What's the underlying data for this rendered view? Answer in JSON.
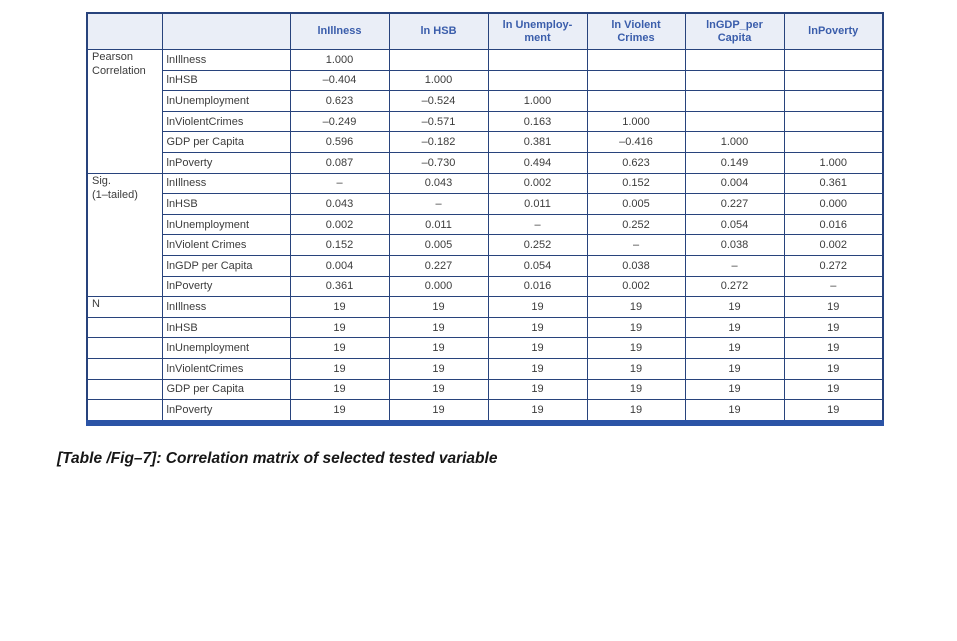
{
  "caption": "[Table /Fig–7]: Correlation matrix of selected tested variable",
  "colors": {
    "grid_border": "#28437c",
    "bottom_bar": "#2b54a6",
    "header_bg": "#eaeef7",
    "header_text": "#3a5dab",
    "body_text": "#3c3c3c"
  },
  "table": {
    "column_headers": [
      "",
      "",
      "lnIllness",
      "ln HSB",
      "ln Unemploy-\nment",
      "ln Violent\nCrimes",
      "lnGDP_per\nCapita",
      "lnPoverty"
    ],
    "sections": [
      {
        "stub": "Pearson\nCorrelation",
        "stub_merged": true,
        "rows": [
          {
            "label": "lnIllness",
            "cells": [
              "1.000",
              "",
              "",
              "",
              "",
              ""
            ]
          },
          {
            "label": "lnHSB",
            "cells": [
              "–0.404",
              "1.000",
              "",
              "",
              "",
              ""
            ]
          },
          {
            "label": "lnUnemployment",
            "cells": [
              "0.623",
              "–0.524",
              "1.000",
              "",
              "",
              ""
            ]
          },
          {
            "label": "lnViolentCrimes",
            "cells": [
              "–0.249",
              "–0.571",
              "0.163",
              "1.000",
              "",
              ""
            ]
          },
          {
            "label": "GDP per Capita",
            "cells": [
              "0.596",
              "–0.182",
              "0.381",
              "–0.416",
              "1.000",
              ""
            ]
          },
          {
            "label": "lnPoverty",
            "cells": [
              "0.087",
              "–0.730",
              "0.494",
              "0.623",
              "0.149",
              "1.000"
            ]
          }
        ]
      },
      {
        "stub": "Sig.\n(1–tailed)",
        "stub_merged": true,
        "rows": [
          {
            "label": "lnIllness",
            "cells": [
              "–",
              "0.043",
              "0.002",
              "0.152",
              "0.004",
              "0.361"
            ]
          },
          {
            "label": "lnHSB",
            "cells": [
              "0.043",
              "–",
              "0.011",
              "0.005",
              "0.227",
              "0.000"
            ]
          },
          {
            "label": "lnUnemployment",
            "cells": [
              "0.002",
              "0.011",
              "–",
              "0.252",
              "0.054",
              "0.016"
            ]
          },
          {
            "label": "lnViolent Crimes",
            "cells": [
              "0.152",
              "0.005",
              "0.252",
              "–",
              "0.038",
              "0.002"
            ]
          },
          {
            "label": "lnGDP per Capita",
            "cells": [
              "0.004",
              "0.227",
              "0.054",
              "0.038",
              "–",
              "0.272"
            ]
          },
          {
            "label": "lnPoverty",
            "cells": [
              "0.361",
              "0.000",
              "0.016",
              "0.002",
              "0.272",
              "–"
            ]
          }
        ]
      },
      {
        "stub": "N",
        "stub_merged": false,
        "rows": [
          {
            "label": "lnIllness",
            "cells": [
              "19",
              "19",
              "19",
              "19",
              "19",
              "19"
            ]
          },
          {
            "label": "lnHSB",
            "cells": [
              "19",
              "19",
              "19",
              "19",
              "19",
              "19"
            ]
          },
          {
            "label": "lnUnemployment",
            "cells": [
              "19",
              "19",
              "19",
              "19",
              "19",
              "19"
            ]
          },
          {
            "label": "lnViolentCrimes",
            "cells": [
              "19",
              "19",
              "19",
              "19",
              "19",
              "19"
            ]
          },
          {
            "label": "GDP per Capita",
            "cells": [
              "19",
              "19",
              "19",
              "19",
              "19",
              "19"
            ]
          },
          {
            "label": "lnPoverty",
            "cells": [
              "19",
              "19",
              "19",
              "19",
              "19",
              "19"
            ]
          }
        ]
      }
    ]
  }
}
